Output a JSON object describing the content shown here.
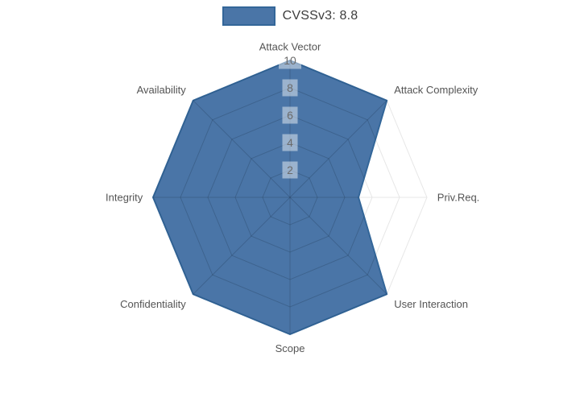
{
  "legend": {
    "position": "top-center",
    "label": "CVSSv3: 8.8"
  },
  "chart_data": {
    "type": "radar",
    "title": "",
    "categories": [
      "Attack Vector",
      "Attack Complexity",
      "Priv.Req.",
      "User Interaction",
      "Scope",
      "Confidentiality",
      "Integrity",
      "Availability"
    ],
    "series": [
      {
        "name": "CVSSv3: 8.8",
        "values": [
          10,
          10,
          5,
          10,
          10,
          10,
          10,
          10
        ]
      }
    ],
    "radial_axis": {
      "ticks": [
        2,
        4,
        6,
        8,
        10
      ],
      "tick_labels": [
        "2",
        "4",
        "6",
        "8",
        "10"
      ],
      "range": [
        0,
        10
      ]
    },
    "angular_start": "top",
    "direction": "clockwise",
    "grid": true,
    "legend_position": "top-center",
    "colors": {
      "fill": "rgba(47,97,154,0.87)",
      "line": "#336699",
      "outer_grid": "#e7e7e7",
      "inner_web": "rgba(0,0,0,0.13)",
      "tick_box_bg": "rgba(255,255,255,0.45)",
      "tick_text": "#6b6b6b",
      "axis_label_text": "#545454",
      "legend_text": "#3d3d3d"
    }
  }
}
